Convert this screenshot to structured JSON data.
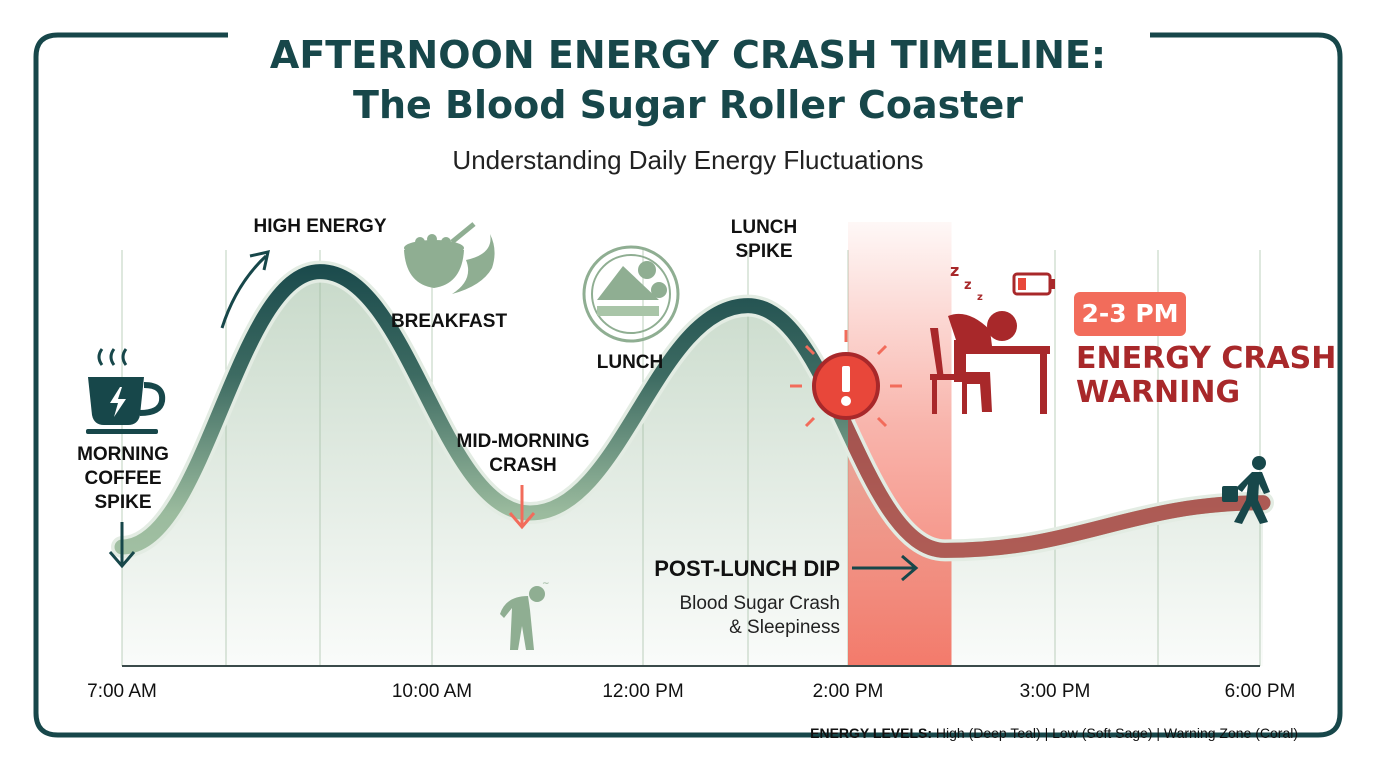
{
  "title_line1": "AFTERNOON ENERGY CRASH TIMELINE:",
  "title_line2": "The Blood Sugar Roller Coaster",
  "subtitle": "Understanding Daily Energy Fluctuations",
  "chart_data": {
    "type": "line",
    "x_tick_labels": [
      "7:00 AM",
      "10:00 AM",
      "12:00 PM",
      "2:00 PM",
      "3:00 PM",
      "6:00 PM"
    ],
    "series": [
      {
        "values": [
          15,
          96,
          25,
          86,
          14,
          28
        ]
      }
    ],
    "ylim": [
      0,
      100
    ],
    "warning_zone": {
      "start": "2:00 PM",
      "end": "3:00 PM",
      "label": "2-3 PM"
    },
    "grid": "vertical",
    "legend_position": "bottom-right"
  },
  "annotations": {
    "morning_coffee": [
      "MORNING",
      "COFFEE",
      "SPIKE"
    ],
    "high_energy": "HIGH ENERGY",
    "breakfast": "BREAKFAST",
    "mid_morning": [
      "MID-MORNING",
      "CRASH"
    ],
    "lunch": "LUNCH",
    "lunch_spike": [
      "LUNCH",
      "SPIKE"
    ],
    "post_lunch_dip": "POST-LUNCH DIP",
    "post_lunch_sub": [
      "Blood Sugar Crash",
      "& Sleepiness"
    ],
    "warning_badge": "2-3 PM",
    "warning_text": [
      "ENERGY CRASH",
      "WARNING"
    ]
  },
  "legend": {
    "label": "ENERGY LEVELS:",
    "text": " High (Deep Teal) | Low (Soft Sage) | Warning Zone (Coral)"
  },
  "icons": [
    "coffee-cup-icon",
    "cereal-bowl-icon",
    "sandwich-plate-icon",
    "alert-icon",
    "sleeping-person-icon",
    "low-battery-icon",
    "tired-person-icon",
    "walking-person-icon"
  ],
  "colors": {
    "deep_teal": "#17474a",
    "soft_sage": "#9bbb9e",
    "coral": "#f26c5b",
    "warning_red": "#a8282a"
  }
}
